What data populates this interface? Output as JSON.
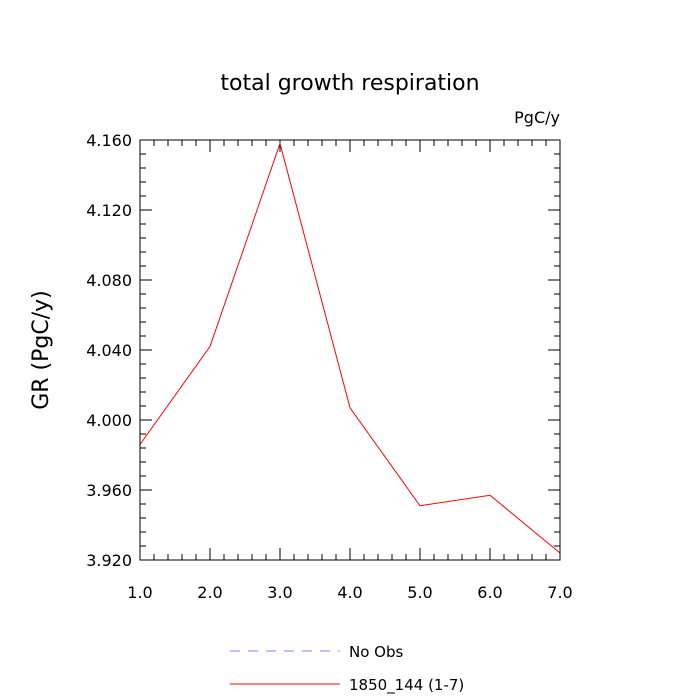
{
  "chart_data": {
    "type": "line",
    "title": "total growth respiration",
    "units_label": "PgC/y",
    "ylabel": "GR  (PgC/y)",
    "xlabel": "",
    "xlim": [
      1.0,
      7.0
    ],
    "ylim": [
      3.92,
      4.16
    ],
    "x_ticks": [
      "1.0",
      "2.0",
      "3.0",
      "4.0",
      "5.0",
      "6.0",
      "7.0"
    ],
    "y_ticks": [
      "3.920",
      "3.960",
      "4.000",
      "4.040",
      "4.080",
      "4.120",
      "4.160"
    ],
    "x": [
      1,
      2,
      3,
      4,
      5,
      6,
      7
    ],
    "series": [
      {
        "name": "1850_144 (1-7)",
        "color": "#ff0000",
        "values": [
          3.986,
          4.042,
          4.158,
          4.007,
          3.951,
          3.957,
          3.924
        ]
      }
    ],
    "legend": {
      "position": "bottom-center",
      "entries": [
        {
          "label": "No Obs",
          "color": "#8080ff",
          "style": "dashed"
        },
        {
          "label": "1850_144 (1-7)",
          "color": "#ff0000",
          "style": "solid"
        }
      ]
    }
  }
}
